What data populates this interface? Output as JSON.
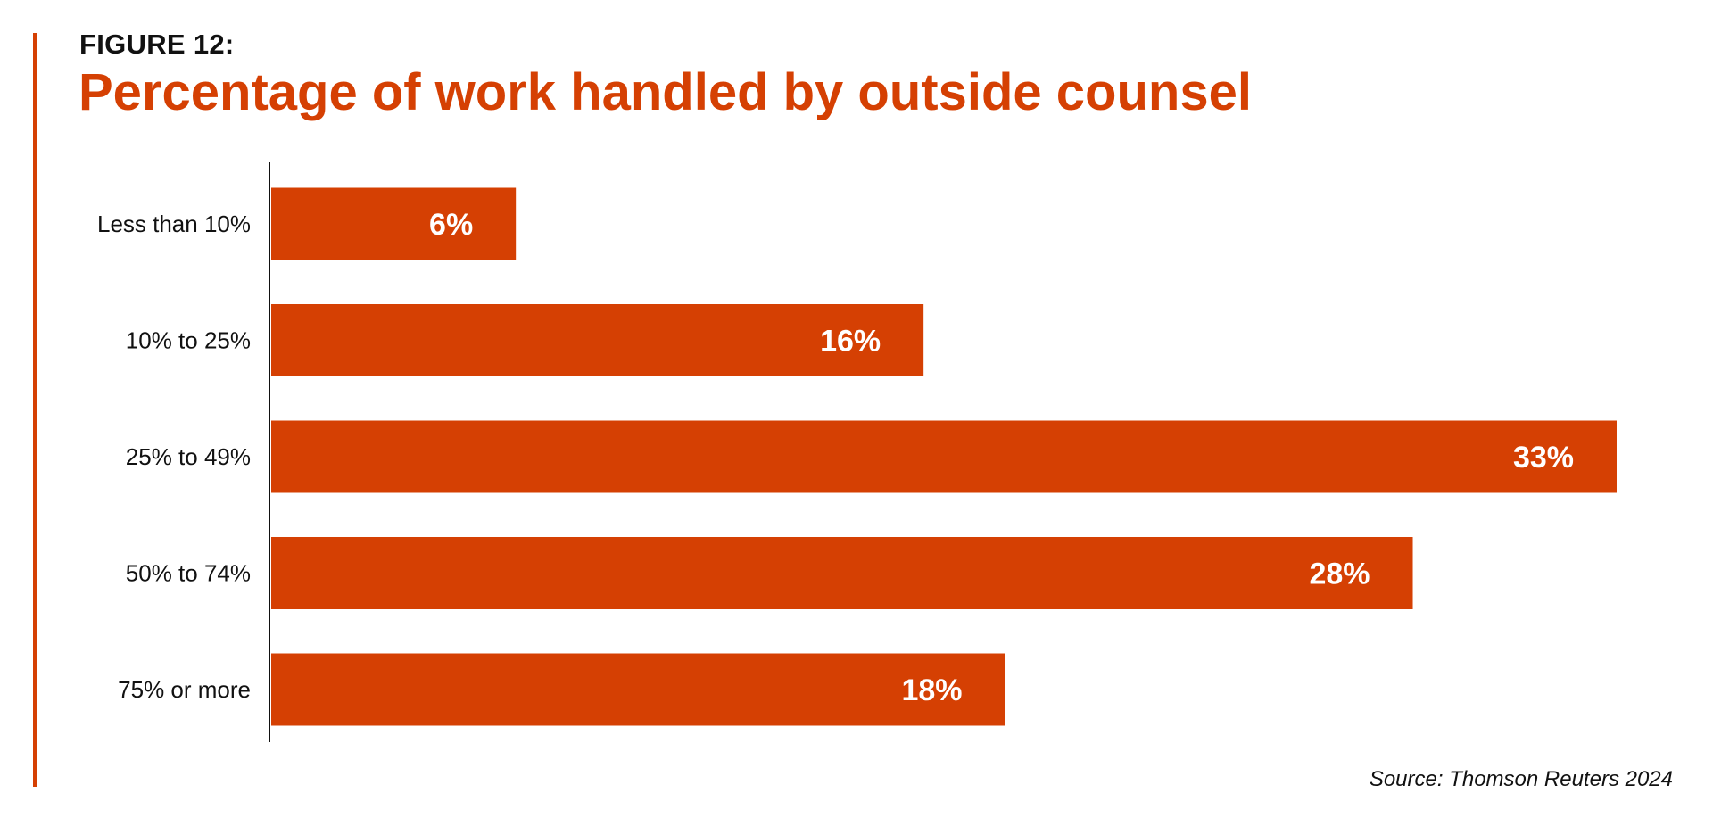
{
  "figure_label": "FIGURE 12:",
  "source": "Source: Thomson Reuters 2024",
  "colors": {
    "accent": "#d54003",
    "text": "#111111",
    "value_label": "#ffffff"
  },
  "chart_data": {
    "type": "bar",
    "orientation": "horizontal",
    "title": "Percentage of work handled by outside counsel",
    "categories": [
      "Less than 10%",
      "10% to 25%",
      "25% to 49%",
      "50% to 74%",
      "75% or more"
    ],
    "values": [
      6,
      16,
      33,
      28,
      18
    ],
    "value_labels": [
      "6%",
      "16%",
      "33%",
      "28%",
      "18%"
    ],
    "xlim": [
      0,
      35
    ],
    "grid": false,
    "legend": "none"
  }
}
